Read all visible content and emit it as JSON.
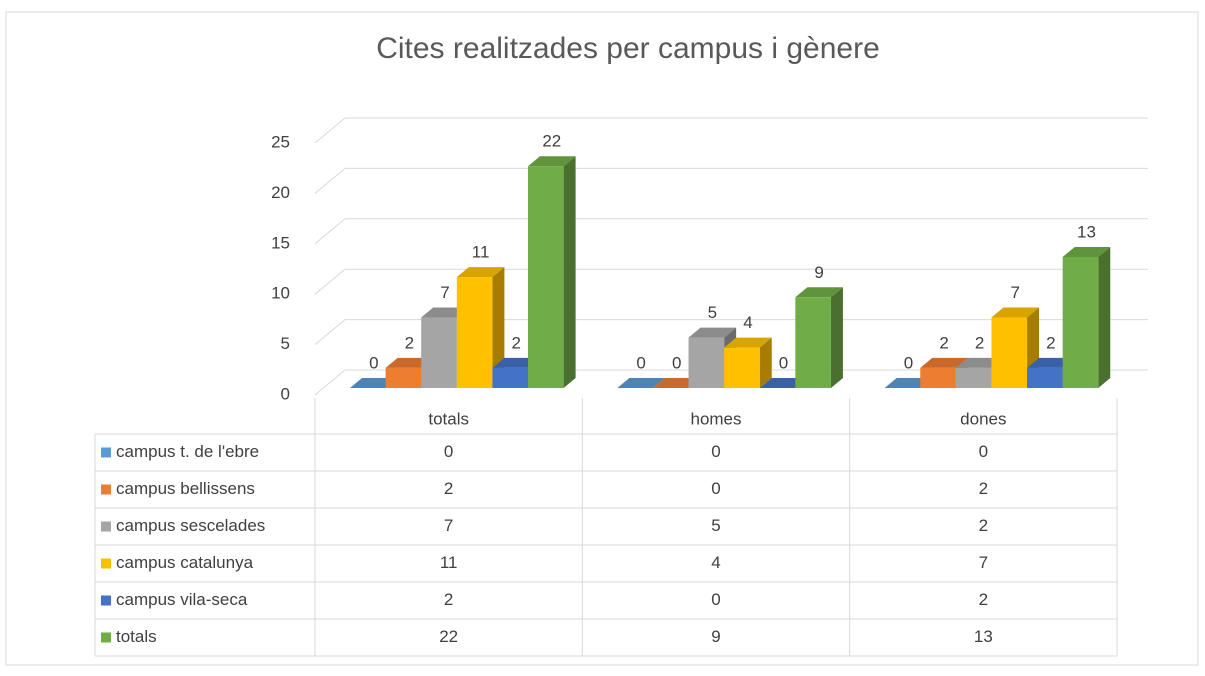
{
  "chart_data": {
    "type": "bar3d",
    "title": "Cites realitzades per campus i gènere",
    "categories": [
      "totals",
      "homes",
      "dones"
    ],
    "series": [
      {
        "name": "campus t. de l'ebre",
        "color": "#5b9bd5",
        "values": [
          0,
          0,
          0
        ]
      },
      {
        "name": "campus bellissens",
        "color": "#ed7d31",
        "values": [
          2,
          0,
          2
        ]
      },
      {
        "name": "campus sescelades",
        "color": "#a5a5a5",
        "values": [
          7,
          5,
          2
        ]
      },
      {
        "name": "campus catalunya",
        "color": "#ffc000",
        "values": [
          11,
          4,
          7
        ]
      },
      {
        "name": "campus vila-seca",
        "color": "#4472c4",
        "values": [
          2,
          0,
          2
        ]
      },
      {
        "name": "totals",
        "color": "#70ad47",
        "values": [
          22,
          9,
          13
        ]
      }
    ],
    "ylim": [
      0,
      25
    ],
    "yticks": [
      0,
      5,
      10,
      15,
      20,
      25
    ],
    "grid": true,
    "data_table": true
  }
}
